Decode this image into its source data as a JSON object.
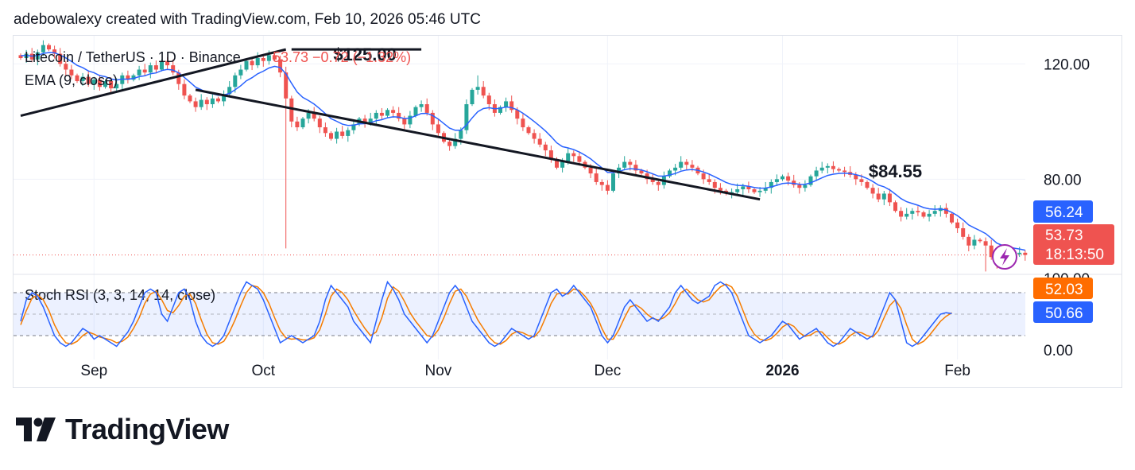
{
  "header": {
    "credit": "adebowalexy created with TradingView.com, Feb 10, 2026 05:46 UTC"
  },
  "brand": {
    "name": "TradingView",
    "logo_icon": "tradingview-logo-icon"
  },
  "colors": {
    "up": "#26a69a",
    "down": "#ef5350",
    "ema": "#2962ff",
    "stoch_k": "#2962ff",
    "stoch_d": "#f57c00",
    "trend": "#131722",
    "band": "#2962ff",
    "last_price_bg": "#ef5350",
    "ema_label_bg": "#2962ff",
    "stoch_d_label_bg": "#ff6d00",
    "stoch_k_label_bg": "#2962ff",
    "bolt": "#9c27b0"
  },
  "chart_data": {
    "type": "candlestick",
    "symbol": "Litecoin / TetherUS · 1D · Binance",
    "last_close": "53.73",
    "change": "−0.72 (−1.32%)",
    "indicator_ema": "EMA (9, close)",
    "indicator_stoch": "Stoch RSI (3, 3, 14, 14, close)",
    "price_axis": {
      "ticks": [
        "120.00",
        "80.00"
      ],
      "range": [
        47,
        130
      ]
    },
    "stoch_axis": {
      "ticks": [
        "100.00",
        "0.00"
      ],
      "range": [
        0,
        100
      ],
      "bands": [
        80,
        20
      ]
    },
    "time_axis": [
      {
        "label": "Sep",
        "day": 13,
        "bold": false
      },
      {
        "label": "Oct",
        "day": 43,
        "bold": false
      },
      {
        "label": "Nov",
        "day": 74,
        "bold": false
      },
      {
        "label": "Dec",
        "day": 104,
        "bold": false
      },
      {
        "label": "2026",
        "day": 135,
        "bold": true
      },
      {
        "label": "Feb",
        "day": 166,
        "bold": false
      }
    ],
    "annotations": [
      {
        "text": "$125.00",
        "day": 61,
        "price": 125
      },
      {
        "text": "$84.55",
        "day": 155,
        "price": 84.55
      }
    ],
    "price_labels": {
      "ema": "56.24",
      "last": "53.73",
      "countdown": "18:13:50",
      "stoch_d": "52.03",
      "stoch_k": "50.66"
    },
    "trendlines": [
      {
        "from": {
          "day": 0,
          "price": 102
        },
        "to": {
          "day": 47,
          "price": 125
        }
      },
      {
        "from": {
          "day": 31,
          "price": 111
        },
        "to": {
          "day": 131,
          "price": 73
        }
      },
      {
        "from": {
          "day": 48,
          "price": 125
        },
        "to": {
          "day": 71,
          "price": 125
        }
      }
    ],
    "closes": [
      122,
      123.5,
      121.5,
      124,
      126.5,
      125,
      123.5,
      120,
      118,
      116,
      114,
      115.5,
      113,
      114.5,
      112,
      114,
      111.5,
      113,
      116,
      114.5,
      116,
      118,
      117,
      119.5,
      118,
      121,
      119.5,
      117,
      113,
      109,
      107,
      105,
      107.5,
      106,
      108,
      107,
      109.5,
      112,
      116,
      118,
      121,
      119.5,
      122,
      121,
      123,
      121.5,
      117,
      108,
      100,
      98,
      101,
      103,
      101,
      98,
      96,
      94,
      96.5,
      95,
      97,
      99,
      101,
      99.5,
      101,
      103,
      102,
      104,
      103,
      101,
      99,
      102,
      105,
      106,
      103,
      99,
      96,
      93,
      91.5,
      94,
      97,
      106,
      111,
      112,
      109,
      106,
      103,
      105,
      107,
      104,
      101,
      98,
      96,
      94,
      92,
      90,
      87,
      84,
      86,
      89,
      88,
      86,
      84,
      82,
      79,
      78,
      76,
      82,
      84,
      86,
      85,
      83,
      82,
      80,
      79,
      78,
      81,
      83,
      84,
      86,
      85,
      84,
      82,
      80,
      79,
      77,
      76,
      75,
      75.5,
      76.5,
      77.5,
      76.5,
      75.5,
      76,
      77,
      79,
      80,
      81,
      79.5,
      78,
      77,
      78,
      81,
      83,
      84,
      84.55,
      83.5,
      83,
      82.5,
      81.5,
      80,
      79,
      77,
      75,
      73,
      75,
      72,
      69,
      67,
      68,
      69,
      68.5,
      67,
      68,
      69,
      70,
      68,
      65,
      63,
      60,
      57,
      59,
      58.5,
      57,
      53,
      51,
      54,
      55,
      54,
      54.5,
      53.73
    ],
    "stoch_k": [
      40,
      70,
      80,
      75,
      60,
      40,
      20,
      10,
      5,
      10,
      20,
      30,
      25,
      15,
      20,
      15,
      10,
      5,
      15,
      25,
      40,
      60,
      80,
      85,
      80,
      50,
      40,
      60,
      80,
      85,
      70,
      40,
      20,
      10,
      5,
      10,
      20,
      40,
      60,
      80,
      95,
      90,
      85,
      70,
      50,
      30,
      10,
      15,
      20,
      15,
      10,
      15,
      20,
      40,
      70,
      90,
      80,
      70,
      60,
      40,
      30,
      20,
      10,
      40,
      70,
      95,
      85,
      70,
      50,
      40,
      30,
      20,
      10,
      20,
      40,
      60,
      80,
      90,
      80,
      60,
      40,
      30,
      20,
      10,
      5,
      10,
      20,
      30,
      25,
      20,
      15,
      20,
      40,
      60,
      80,
      85,
      75,
      80,
      90,
      80,
      70,
      60,
      40,
      20,
      10,
      20,
      40,
      60,
      70,
      60,
      50,
      40,
      45,
      40,
      50,
      60,
      80,
      90,
      80,
      70,
      65,
      70,
      75,
      90,
      95,
      90,
      80,
      60,
      40,
      20,
      15,
      10,
      15,
      20,
      30,
      40,
      35,
      25,
      15,
      20,
      25,
      30,
      20,
      10,
      5,
      10,
      20,
      30,
      25,
      20,
      15,
      20,
      40,
      60,
      80,
      70,
      40,
      10,
      5,
      10,
      20,
      30,
      40,
      50,
      52,
      50.66
    ],
    "stoch_d": [
      35,
      55,
      72,
      77,
      70,
      55,
      35,
      20,
      10,
      8,
      12,
      20,
      25,
      22,
      18,
      16,
      14,
      10,
      12,
      18,
      30,
      45,
      65,
      78,
      82,
      70,
      55,
      52,
      62,
      75,
      78,
      65,
      42,
      22,
      10,
      8,
      12,
      25,
      42,
      62,
      80,
      90,
      88,
      80,
      65,
      45,
      27,
      17,
      15,
      16,
      14,
      14,
      17,
      28,
      50,
      75,
      85,
      80,
      70,
      55,
      42,
      30,
      20,
      25,
      45,
      72,
      88,
      82,
      68,
      52,
      40,
      30,
      20,
      18,
      28,
      45,
      65,
      82,
      85,
      75,
      58,
      42,
      30,
      18,
      10,
      8,
      13,
      22,
      26,
      24,
      20,
      18,
      27,
      45,
      65,
      78,
      80,
      78,
      85,
      83,
      75,
      65,
      50,
      30,
      15,
      15,
      28,
      45,
      60,
      63,
      58,
      50,
      44,
      42,
      45,
      52,
      65,
      80,
      85,
      78,
      70,
      67,
      70,
      80,
      88,
      92,
      88,
      75,
      55,
      35,
      22,
      15,
      13,
      16,
      23,
      32,
      37,
      33,
      24,
      19,
      21,
      26,
      25,
      17,
      10,
      8,
      12,
      20,
      25,
      24,
      20,
      18,
      27,
      45,
      62,
      70,
      58,
      35,
      15,
      8,
      12,
      20,
      30,
      40,
      47,
      52.03
    ]
  }
}
